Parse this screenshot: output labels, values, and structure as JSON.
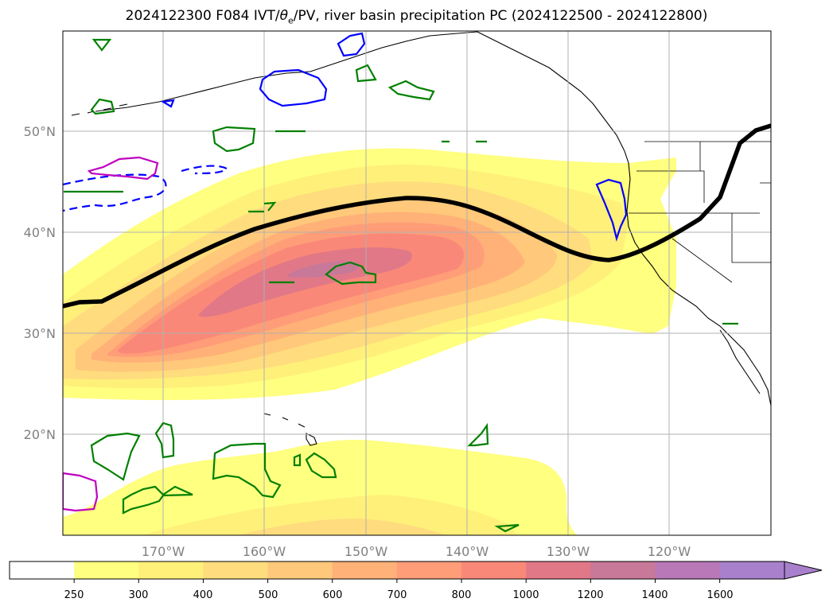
{
  "title": {
    "prefix": "2024122300 F084 IVT/",
    "theta": "θ",
    "theta_sub": "e",
    "suffix": "/PV, river basin precipitation PC (2024122500 - 2024122800)"
  },
  "map": {
    "lat_labels": [
      "50°N",
      "40°N",
      "30°N",
      "20°N"
    ],
    "lon_labels": [
      "170°W",
      "160°W",
      "150°W",
      "140°W",
      "130°W",
      "120°W"
    ],
    "colors": {
      "ivt_250": "#ffff80",
      "ivt_300": "#fff07a",
      "ivt_400": "#ffdc7d",
      "ivt_500": "#ffc87a",
      "ivt_600": "#ffb178",
      "ivt_700": "#ff9d78",
      "ivt_800": "#fa8878",
      "ivt_1000": "#e07888",
      "ivt_1200": "#c87898",
      "jet_line": "#000000",
      "pv_contour": "#008000",
      "theta_contour": "#0000ff",
      "precip_contour": "#c000c0"
    }
  },
  "colorbar": {
    "ticks": [
      "250",
      "300",
      "400",
      "500",
      "600",
      "700",
      "800",
      "1000",
      "1200",
      "1400",
      "1600"
    ],
    "colors": [
      "#ffffff",
      "#ffff80",
      "#fff07a",
      "#ffdc7d",
      "#ffc87a",
      "#ffb178",
      "#ff9d78",
      "#fa8878",
      "#e07888",
      "#c87898",
      "#b978b8",
      "#a880cc"
    ]
  }
}
